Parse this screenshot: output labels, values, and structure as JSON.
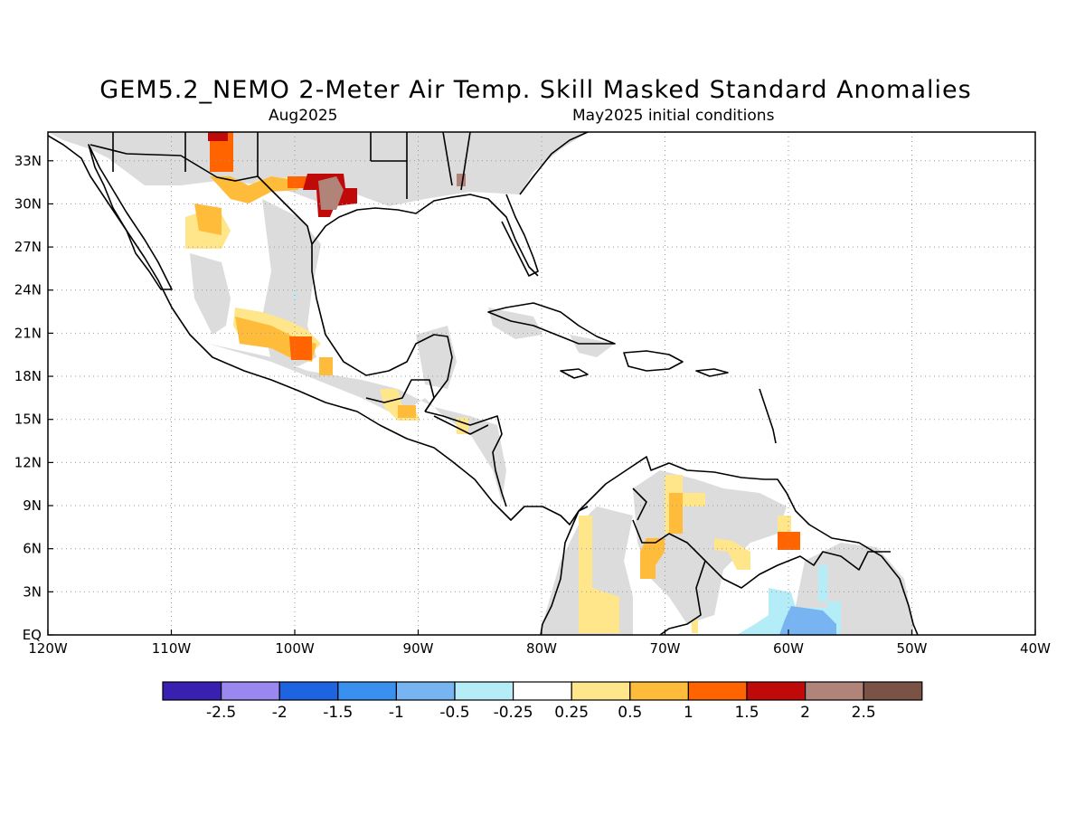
{
  "header": {
    "title": "GEM5.2_NEMO 2-Meter Air Temp. Skill Masked Standard Anomalies",
    "valid_month": "Aug2025",
    "initial_conditions": "May2025 initial conditions"
  },
  "map": {
    "lon_range": [
      -120,
      -40
    ],
    "lat_range": [
      0,
      35
    ],
    "lon_ticks": [
      {
        "value": -120,
        "label": "120W"
      },
      {
        "value": -110,
        "label": "110W"
      },
      {
        "value": -100,
        "label": "100W"
      },
      {
        "value": -90,
        "label": "90W"
      },
      {
        "value": -80,
        "label": "80W"
      },
      {
        "value": -70,
        "label": "70W"
      },
      {
        "value": -60,
        "label": "60W"
      },
      {
        "value": -50,
        "label": "50W"
      },
      {
        "value": -40,
        "label": "40W"
      }
    ],
    "lat_ticks": [
      {
        "value": 0,
        "label": "EQ"
      },
      {
        "value": 3,
        "label": "3N"
      },
      {
        "value": 6,
        "label": "6N"
      },
      {
        "value": 9,
        "label": "9N"
      },
      {
        "value": 12,
        "label": "12N"
      },
      {
        "value": 15,
        "label": "15N"
      },
      {
        "value": 18,
        "label": "18N"
      },
      {
        "value": 21,
        "label": "21N"
      },
      {
        "value": 24,
        "label": "24N"
      },
      {
        "value": 27,
        "label": "27N"
      },
      {
        "value": 30,
        "label": "30N"
      },
      {
        "value": 33,
        "label": "33N"
      }
    ],
    "grid": "dotted"
  },
  "colorbar": {
    "colors": [
      "#3a20b0",
      "#9a88f0",
      "#1e64e0",
      "#3a90ee",
      "#78b4f2",
      "#b4ecf8",
      "#ffffff",
      "#ffe68a",
      "#ffbc3a",
      "#ff6400",
      "#c00a0a",
      "#b08478",
      "#7a5246"
    ],
    "labels": [
      "-2.5",
      "-2",
      "-1.5",
      "-1",
      "-0.5",
      "-0.25",
      "0.25",
      "0.5",
      "1",
      "1.5",
      "2",
      "2.5"
    ]
  }
}
